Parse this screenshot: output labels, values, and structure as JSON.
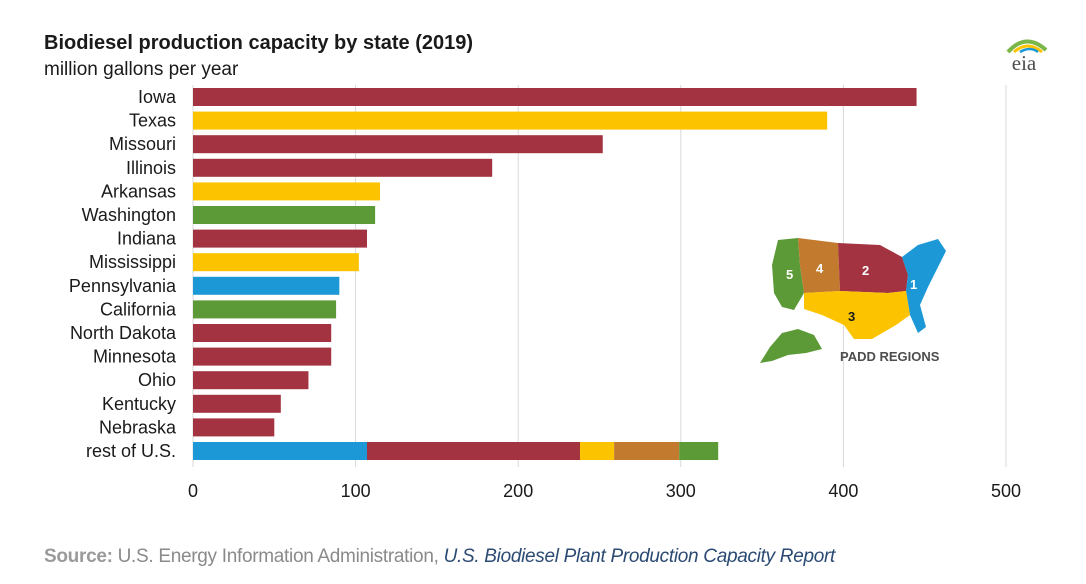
{
  "header": {
    "title": "Biodiesel production capacity by state (2019)",
    "subtitle": "million gallons per year"
  },
  "logo": {
    "text": "eia"
  },
  "inset_map": {
    "label": "PADD REGIONS",
    "regions": [
      "1",
      "2",
      "3",
      "4",
      "5"
    ]
  },
  "footer": {
    "source_label": "Source:",
    "source_text": " U.S. Energy Information Administration, ",
    "report": "U.S. Biodiesel Plant Production Capacity Report"
  },
  "colors": {
    "padd1": "#1b98d5",
    "padd2": "#a33340",
    "padd3": "#fcc300",
    "padd4": "#c17a2e",
    "padd5": "#5b9a36",
    "grid": "#d9d9d9",
    "axis_text": "#1a1a1a"
  },
  "chart_data": {
    "type": "bar",
    "orientation": "horizontal",
    "categories": [
      "Iowa",
      "Texas",
      "Missouri",
      "Illinois",
      "Arkansas",
      "Washington",
      "Indiana",
      "Mississippi",
      "Pennsylvania",
      "California",
      "North Dakota",
      "Minnesota",
      "Ohio",
      "Kentucky",
      "Nebraska",
      "rest of U.S."
    ],
    "values": [
      445,
      390,
      252,
      184,
      115,
      112,
      107,
      102,
      90,
      88,
      85,
      85,
      71,
      54,
      50,
      323
    ],
    "padd": [
      "2",
      "3",
      "2",
      "2",
      "3",
      "5",
      "2",
      "3",
      "1",
      "5",
      "2",
      "2",
      "2",
      "2",
      "2",
      "mixed"
    ],
    "stacked_rest": [
      {
        "padd": "1",
        "value": 107
      },
      {
        "padd": "2",
        "value": 131
      },
      {
        "padd": "3",
        "value": 21
      },
      {
        "padd": "4",
        "value": 40
      },
      {
        "padd": "5",
        "value": 24
      }
    ],
    "xticks": [
      0,
      100,
      200,
      300,
      400,
      500
    ],
    "xlim": [
      0,
      500
    ],
    "grid": true,
    "title": "Biodiesel production capacity by state (2019)",
    "ylabel": "million gallons per year"
  }
}
